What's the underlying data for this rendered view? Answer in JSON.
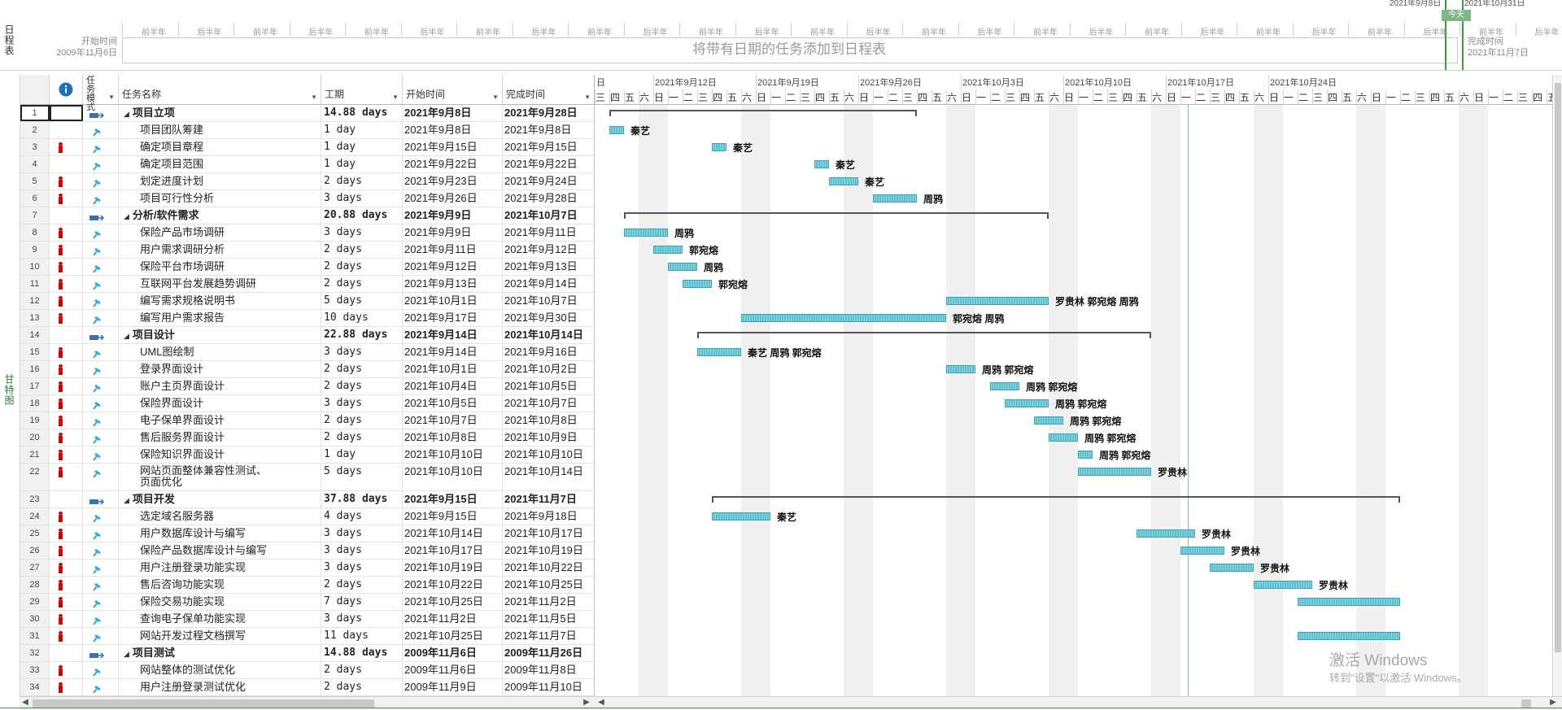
{
  "timeline": {
    "vertical_label": "日程表",
    "start_label": "开始时间",
    "start_date": "2009年11月6日",
    "end_label": "完成时间",
    "end_date": "2021年11月7日",
    "placeholder": "将带有日期的任务添加到日程表",
    "today_label": "今天",
    "range_left": "2021年9月8日",
    "range_right": "2021年10月31日",
    "half_year_labels": [
      "前半年",
      "后半年",
      "前半年",
      "后半年",
      "前半年",
      "后半年",
      "前半年",
      "后半年",
      "前半年",
      "后半年",
      "前半年",
      "后半年",
      "前半年",
      "后半年",
      "前半年",
      "后半年",
      "前半年",
      "后半年",
      "前半年",
      "后半年",
      "前半年",
      "后半年",
      "前半年",
      "后半年",
      "前半年",
      "后半年"
    ]
  },
  "gantt_vertical_label": "甘特图",
  "table": {
    "headers": {
      "info": "i",
      "mode": "任务模式",
      "name": "任务名称",
      "duration": "工期",
      "start": "开始时间",
      "finish": "完成时间"
    },
    "rows": [
      {
        "id": "1",
        "name": "项目立项",
        "duration": "14.88 days",
        "start": "2021年9月8日",
        "finish": "2021年9月28日",
        "summary": true,
        "person": false
      },
      {
        "id": "2",
        "name": "项目团队筹建",
        "duration": "1 day",
        "start": "2021年9月8日",
        "finish": "2021年9月8日",
        "summary": false,
        "person": false
      },
      {
        "id": "3",
        "name": "确定项目章程",
        "duration": "1 day",
        "start": "2021年9月15日",
        "finish": "2021年9月15日",
        "summary": false,
        "person": true
      },
      {
        "id": "4",
        "name": "确定项目范围",
        "duration": "1 day",
        "start": "2021年9月22日",
        "finish": "2021年9月22日",
        "summary": false,
        "person": false
      },
      {
        "id": "5",
        "name": "划定进度计划",
        "duration": "2 days",
        "start": "2021年9月23日",
        "finish": "2021年9月24日",
        "summary": false,
        "person": true
      },
      {
        "id": "6",
        "name": "项目可行性分析",
        "duration": "3 days",
        "start": "2021年9月26日",
        "finish": "2021年9月28日",
        "summary": false,
        "person": true
      },
      {
        "id": "7",
        "name": "分析/软件需求",
        "duration": "20.88 days",
        "start": "2021年9月9日",
        "finish": "2021年10月7日",
        "summary": true,
        "person": false
      },
      {
        "id": "8",
        "name": "保险产品市场调研",
        "duration": "3 days",
        "start": "2021年9月9日",
        "finish": "2021年9月11日",
        "summary": false,
        "person": true
      },
      {
        "id": "9",
        "name": "用户需求调研分析",
        "duration": "2 days",
        "start": "2021年9月11日",
        "finish": "2021年9月12日",
        "summary": false,
        "person": true
      },
      {
        "id": "10",
        "name": "保险平台市场调研",
        "duration": "2 days",
        "start": "2021年9月12日",
        "finish": "2021年9月13日",
        "summary": false,
        "person": true
      },
      {
        "id": "11",
        "name": "互联网平台发展趋势调研",
        "duration": "2 days",
        "start": "2021年9月13日",
        "finish": "2021年9月14日",
        "summary": false,
        "person": true
      },
      {
        "id": "12",
        "name": "编写需求规格说明书",
        "duration": "5 days",
        "start": "2021年10月1日",
        "finish": "2021年10月7日",
        "summary": false,
        "person": true
      },
      {
        "id": "13",
        "name": "编写用户需求报告",
        "duration": "10 days",
        "start": "2021年9月17日",
        "finish": "2021年9月30日",
        "summary": false,
        "person": true
      },
      {
        "id": "14",
        "name": "项目设计",
        "duration": "22.88 days",
        "start": "2021年9月14日",
        "finish": "2021年10月14日",
        "summary": true,
        "person": false
      },
      {
        "id": "15",
        "name": "UML图绘制",
        "duration": "3 days",
        "start": "2021年9月14日",
        "finish": "2021年9月16日",
        "summary": false,
        "person": true
      },
      {
        "id": "16",
        "name": "登录界面设计",
        "duration": "2 days",
        "start": "2021年10月1日",
        "finish": "2021年10月2日",
        "summary": false,
        "person": true
      },
      {
        "id": "17",
        "name": "账户主页界面设计",
        "duration": "2 days",
        "start": "2021年10月4日",
        "finish": "2021年10月5日",
        "summary": false,
        "person": true
      },
      {
        "id": "18",
        "name": "保险界面设计",
        "duration": "3 days",
        "start": "2021年10月5日",
        "finish": "2021年10月7日",
        "summary": false,
        "person": true
      },
      {
        "id": "19",
        "name": "电子保单界面设计",
        "duration": "2 days",
        "start": "2021年10月7日",
        "finish": "2021年10月8日",
        "summary": false,
        "person": true
      },
      {
        "id": "20",
        "name": "售后服务界面设计",
        "duration": "2 days",
        "start": "2021年10月8日",
        "finish": "2021年10月9日",
        "summary": false,
        "person": true
      },
      {
        "id": "21",
        "name": "保险知识界面设计",
        "duration": "1 day",
        "start": "2021年10月10日",
        "finish": "2021年10月10日",
        "summary": false,
        "person": true
      },
      {
        "id": "22",
        "name": "网站页面整体兼容性测试、",
        "name2": "页面优化",
        "duration": "5 days",
        "start": "2021年10月10日",
        "finish": "2021年10月14日",
        "summary": false,
        "person": true
      },
      {
        "id": "23",
        "name": "项目开发",
        "duration": "37.88 days",
        "start": "2021年9月15日",
        "finish": "2021年11月7日",
        "summary": true,
        "person": false
      },
      {
        "id": "24",
        "name": "选定域名服务器",
        "duration": "4 days",
        "start": "2021年9月15日",
        "finish": "2021年9月18日",
        "summary": false,
        "person": true
      },
      {
        "id": "25",
        "name": "用户数据库设计与编写",
        "duration": "3 days",
        "start": "2021年10月14日",
        "finish": "2021年10月17日",
        "summary": false,
        "person": true
      },
      {
        "id": "26",
        "name": "保险产品数据库设计与编写",
        "duration": "3 days",
        "start": "2021年10月17日",
        "finish": "2021年10月19日",
        "summary": false,
        "person": true
      },
      {
        "id": "27",
        "name": "用户注册登录功能实现",
        "duration": "3 days",
        "start": "2021年10月19日",
        "finish": "2021年10月22日",
        "summary": false,
        "person": true
      },
      {
        "id": "28",
        "name": "售后咨询功能实现",
        "duration": "2 days",
        "start": "2021年10月22日",
        "finish": "2021年10月25日",
        "summary": false,
        "person": true
      },
      {
        "id": "29",
        "name": "保险交易功能实现",
        "duration": "7 days",
        "start": "2021年10月25日",
        "finish": "2021年11月2日",
        "summary": false,
        "person": true
      },
      {
        "id": "30",
        "name": "查询电子保单功能实现",
        "duration": "3 days",
        "start": "2021年11月2日",
        "finish": "2021年11月5日",
        "summary": false,
        "person": true
      },
      {
        "id": "31",
        "name": "网站开发过程文档撰写",
        "duration": "11 days",
        "start": "2021年10月25日",
        "finish": "2021年11月7日",
        "summary": false,
        "person": true
      },
      {
        "id": "32",
        "name": "项目测试",
        "duration": "14.88 days",
        "start": "2009年11月6日",
        "finish": "2009年11月26日",
        "summary": true,
        "person": false
      },
      {
        "id": "33",
        "name": "网站整体的测试优化",
        "duration": "2 days",
        "start": "2009年11月6日",
        "finish": "2009年11月8日",
        "summary": false,
        "person": true
      },
      {
        "id": "34",
        "name": "用户注册登录测试优化",
        "duration": "2 days",
        "start": "2009年11月9日",
        "finish": "2009年11月10日",
        "summary": false,
        "person": true
      }
    ]
  },
  "gantt": {
    "first_day_label": "日",
    "leading_days": [
      "三",
      "四",
      "五",
      "六"
    ],
    "week_labels": [
      "2021年9月12日",
      "2021年9月19日",
      "2021年9月26日",
      "2021年10月3日",
      "2021年10月10日",
      "2021年10月17日",
      "2021年10月24日"
    ],
    "weekday_labels": [
      "日",
      "一",
      "二",
      "三",
      "四",
      "五",
      "六"
    ],
    "bars": [
      {
        "row": 2,
        "start_day": 0,
        "days": 1,
        "resources": "秦艺"
      },
      {
        "row": 3,
        "start_day": 7,
        "days": 1,
        "resources": "秦艺"
      },
      {
        "row": 4,
        "start_day": 14,
        "days": 1,
        "resources": "秦艺"
      },
      {
        "row": 5,
        "start_day": 15,
        "days": 2,
        "resources": "秦艺"
      },
      {
        "row": 6,
        "start_day": 18,
        "days": 3,
        "resources": "周鸦"
      },
      {
        "row": 8,
        "start_day": 1,
        "days": 3,
        "resources": "周鸦"
      },
      {
        "row": 9,
        "start_day": 3,
        "days": 2,
        "resources": "郭宛熔"
      },
      {
        "row": 10,
        "start_day": 4,
        "days": 2,
        "resources": "周鸦"
      },
      {
        "row": 11,
        "start_day": 5,
        "days": 2,
        "resources": "郭宛熔"
      },
      {
        "row": 12,
        "start_day": 23,
        "days": 7,
        "resources": "罗贵林 郭宛熔 周鸦"
      },
      {
        "row": 13,
        "start_day": 9,
        "days": 14,
        "resources": "郭宛熔 周鸦"
      },
      {
        "row": 15,
        "start_day": 6,
        "days": 3,
        "resources": "秦艺 周鸦 郭宛熔"
      },
      {
        "row": 16,
        "start_day": 23,
        "days": 2,
        "resources": "周鸦 郭宛熔"
      },
      {
        "row": 17,
        "start_day": 26,
        "days": 2,
        "resources": "周鸦 郭宛熔"
      },
      {
        "row": 18,
        "start_day": 27,
        "days": 3,
        "resources": "周鸦 郭宛熔"
      },
      {
        "row": 19,
        "start_day": 29,
        "days": 2,
        "resources": "周鸦 郭宛熔"
      },
      {
        "row": 20,
        "start_day": 30,
        "days": 2,
        "resources": "周鸦 郭宛熔"
      },
      {
        "row": 21,
        "start_day": 32,
        "days": 1,
        "resources": "周鸦 郭宛熔"
      },
      {
        "row": 22,
        "start_day": 32,
        "days": 5,
        "resources": "罗贵林"
      },
      {
        "row": 24,
        "start_day": 7,
        "days": 4,
        "resources": "秦艺"
      },
      {
        "row": 25,
        "start_day": 36,
        "days": 4,
        "resources": "罗贵林"
      },
      {
        "row": 26,
        "start_day": 39,
        "days": 3,
        "resources": "罗贵林"
      },
      {
        "row": 27,
        "start_day": 41,
        "days": 3,
        "resources": "罗贵林"
      },
      {
        "row": 28,
        "start_day": 44,
        "days": 4,
        "resources": "罗贵林"
      },
      {
        "row": 29,
        "start_day": 47,
        "days": 7,
        "resources": ""
      },
      {
        "row": 31,
        "start_day": 47,
        "days": 7,
        "resources": ""
      }
    ],
    "summaries": [
      {
        "row": 1,
        "start_day": 0,
        "days": 21
      },
      {
        "row": 7,
        "start_day": 1,
        "days": 29
      },
      {
        "row": 14,
        "start_day": 6,
        "days": 31
      },
      {
        "row": 23,
        "start_day": 7,
        "days": 47
      }
    ]
  },
  "watermark": {
    "line1": "激活 Windows",
    "line2": "转到\"设置\"以激活 Windows。"
  },
  "colors": {
    "task_bar": "#5bc0d0",
    "today_line": "#3c9a3c",
    "person_icon": "#d40000",
    "pin_icon": "#2aa7e0"
  }
}
